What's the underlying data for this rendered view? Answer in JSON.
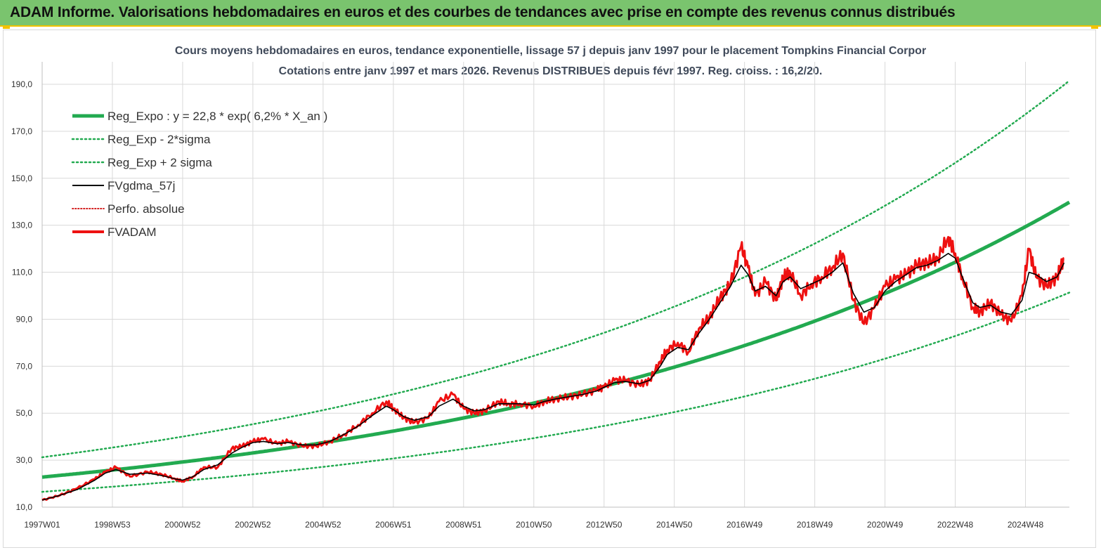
{
  "header": {
    "title": "ADAM Informe. Valorisations hebdomadaires en euros et des courbes de tendances avec prise en compte des revenus connus distribués"
  },
  "chart_data": {
    "type": "line",
    "title": "Cours moyens hebdomadaires en euros, tendance exponentielle, lissage 57 j depuis janv 1997  pour le placement Tompkins Financial Corpor",
    "subtitle": "Cotations entre janv 1997 et mars 2026. Revenus  DISTRIBUES depuis févr 1997. Reg. croiss. : 16,2/20.",
    "xlabel": "",
    "ylabel": "",
    "ylim": [
      10,
      198
    ],
    "yticks": [
      "190,0",
      "170,0",
      "150,0",
      "130,0",
      "110,0",
      "90,0",
      "70,0",
      "50,0",
      "30,0",
      "10,0"
    ],
    "ytick_values": [
      190,
      170,
      150,
      130,
      110,
      90,
      70,
      50,
      30,
      10
    ],
    "xlim": [
      1997.0,
      2026.25
    ],
    "xticks": [
      "1997W01",
      "1998W53",
      "2000W52",
      "2002W52",
      "2004W52",
      "2006W51",
      "2008W51",
      "2010W50",
      "2012W50",
      "2014W50",
      "2016W49",
      "2018W49",
      "2020W49",
      "2022W48",
      "2024W48"
    ],
    "xtick_years": [
      1997.0,
      1999.0,
      2001.0,
      2003.0,
      2005.0,
      2007.0,
      2009.0,
      2011.0,
      2013.0,
      2015.0,
      2017.0,
      2019.0,
      2021.0,
      2023.0,
      2025.0
    ],
    "grid": true,
    "legend_position": "top-left",
    "legend": [
      {
        "name": "Reg_Expo : y = 22,8 * exp( 6,2% *  X_an )",
        "color": "#22aa50",
        "style": "solid-thick"
      },
      {
        "name": "Reg_Exp - 2*sigma",
        "color": "#22aa50",
        "style": "dotted"
      },
      {
        "name": "Reg_Exp + 2 sigma",
        "color": "#22aa50",
        "style": "dotted"
      },
      {
        "name": "FVgdma_57j",
        "color": "#000000",
        "style": "solid"
      },
      {
        "name": "Perfo. absolue",
        "color": "#cc0000",
        "style": "dotted"
      },
      {
        "name": "FVADAM",
        "color": "#ee1111",
        "style": "solid-thick"
      }
    ],
    "regression": {
      "a": 22.8,
      "growth": 0.062,
      "sigma_upper_factor": 1.37,
      "sigma_lower_factor": 0.725
    },
    "series_fvadam": {
      "x": [
        1997.0,
        1997.5,
        1998.0,
        1998.5,
        1998.8,
        1999.1,
        1999.5,
        2000.0,
        2000.4,
        2000.8,
        2001.0,
        2001.3,
        2001.6,
        2002.0,
        2002.4,
        2002.7,
        2003.0,
        2003.3,
        2003.7,
        2004.0,
        2004.4,
        2004.8,
        2005.2,
        2005.6,
        2006.0,
        2006.4,
        2006.8,
        2007.0,
        2007.3,
        2007.6,
        2008.0,
        2008.3,
        2008.7,
        2009.0,
        2009.3,
        2009.6,
        2010.0,
        2010.3,
        2010.6,
        2011.0,
        2011.3,
        2011.6,
        2012.0,
        2012.4,
        2012.8,
        2013.0,
        2013.3,
        2013.6,
        2014.0,
        2014.3,
        2014.6,
        2014.8,
        2015.1,
        2015.4,
        2015.7,
        2016.0,
        2016.3,
        2016.6,
        2016.9,
        2017.1,
        2017.3,
        2017.6,
        2017.9,
        2018.1,
        2018.3,
        2018.6,
        2018.9,
        2019.2,
        2019.5,
        2019.8,
        2020.1,
        2020.4,
        2020.7,
        2021.0,
        2021.3,
        2021.6,
        2021.9,
        2022.2,
        2022.5,
        2022.8,
        2023.0,
        2023.2,
        2023.5,
        2023.7,
        2024.0,
        2024.3,
        2024.6,
        2024.9,
        2025.1,
        2025.3,
        2025.6,
        2025.9,
        2026.1
      ],
      "values": [
        13,
        15,
        18,
        22,
        25,
        27,
        23,
        25,
        24,
        22,
        21,
        23,
        27,
        27,
        35,
        36,
        38,
        39,
        37,
        38,
        36,
        36,
        38,
        41,
        45,
        50,
        55,
        52,
        48,
        46,
        48,
        55,
        58,
        52,
        50,
        51,
        55,
        54,
        54,
        53,
        55,
        56,
        57,
        58,
        60,
        61,
        64,
        64,
        62,
        64,
        72,
        77,
        80,
        76,
        86,
        91,
        99,
        105,
        121,
        112,
        100,
        106,
        98,
        108,
        110,
        100,
        105,
        108,
        112,
        118,
        98,
        88,
        95,
        104,
        107,
        109,
        113,
        114,
        116,
        125,
        118,
        108,
        95,
        93,
        97,
        92,
        89,
        100,
        120,
        108,
        104,
        108,
        116
      ]
    },
    "series_gdma": {
      "x": [
        1997.0,
        1997.5,
        1998.0,
        1998.5,
        1998.8,
        1999.1,
        1999.5,
        2000.0,
        2000.4,
        2000.8,
        2001.0,
        2001.3,
        2001.6,
        2002.0,
        2002.4,
        2002.7,
        2003.0,
        2003.3,
        2003.7,
        2004.0,
        2004.4,
        2004.8,
        2005.2,
        2005.6,
        2006.0,
        2006.4,
        2006.8,
        2007.0,
        2007.3,
        2007.6,
        2008.0,
        2008.3,
        2008.7,
        2009.0,
        2009.3,
        2009.6,
        2010.0,
        2010.3,
        2010.6,
        2011.0,
        2011.3,
        2011.6,
        2012.0,
        2012.4,
        2012.8,
        2013.0,
        2013.3,
        2013.6,
        2014.0,
        2014.3,
        2014.6,
        2014.8,
        2015.1,
        2015.4,
        2015.7,
        2016.0,
        2016.3,
        2016.6,
        2016.9,
        2017.1,
        2017.3,
        2017.6,
        2017.9,
        2018.1,
        2018.3,
        2018.6,
        2018.9,
        2019.2,
        2019.5,
        2019.8,
        2020.1,
        2020.4,
        2020.7,
        2021.0,
        2021.3,
        2021.6,
        2021.9,
        2022.2,
        2022.5,
        2022.8,
        2023.0,
        2023.2,
        2023.5,
        2023.7,
        2024.0,
        2024.3,
        2024.6,
        2024.9,
        2025.1,
        2025.3,
        2025.6,
        2025.9,
        2026.1
      ],
      "values": [
        13,
        15,
        17.5,
        21.5,
        24.5,
        26,
        24,
        24.5,
        23.5,
        22,
        21.5,
        23,
        26,
        28,
        33,
        35.5,
        37.5,
        38,
        37,
        37.5,
        36.5,
        36.5,
        38,
        41,
        44.5,
        49,
        53,
        51.5,
        48.5,
        47,
        48.5,
        53,
        56,
        53,
        51,
        51.5,
        54,
        54,
        54,
        53.5,
        55,
        56,
        57,
        58,
        59.5,
        61,
        63,
        63.5,
        62.5,
        64,
        70,
        75,
        78,
        77,
        84,
        90,
        97,
        104,
        113,
        109,
        102,
        104,
        100,
        106,
        108,
        103,
        105,
        107,
        110,
        114,
        101,
        93,
        95,
        102,
        106,
        109,
        112,
        113,
        115,
        118,
        116,
        108,
        97,
        95,
        96,
        93,
        92,
        98,
        110,
        109,
        106,
        108,
        114
      ]
    }
  }
}
